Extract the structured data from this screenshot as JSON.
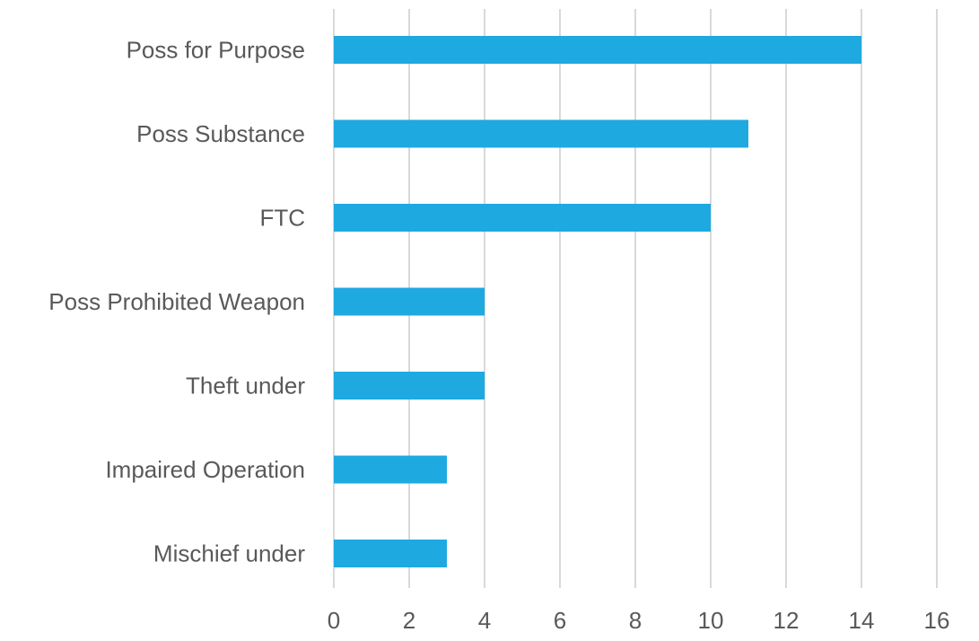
{
  "chart_data": {
    "type": "bar",
    "orientation": "horizontal",
    "categories": [
      "Poss for Purpose",
      "Poss Substance",
      "FTC",
      "Poss Prohibited Weapon",
      "Theft under",
      "Impaired Operation",
      "Mischief under"
    ],
    "values": [
      14,
      11,
      10,
      4,
      4,
      3,
      3
    ],
    "xlim": [
      0,
      16
    ],
    "xticks": [
      "0",
      "2",
      "4",
      "6",
      "8",
      "10",
      "12",
      "14",
      "16"
    ],
    "grid": "vertical",
    "legend": "none",
    "bar_color": "#1ea9e1",
    "title": "",
    "xlabel": "",
    "ylabel": ""
  }
}
